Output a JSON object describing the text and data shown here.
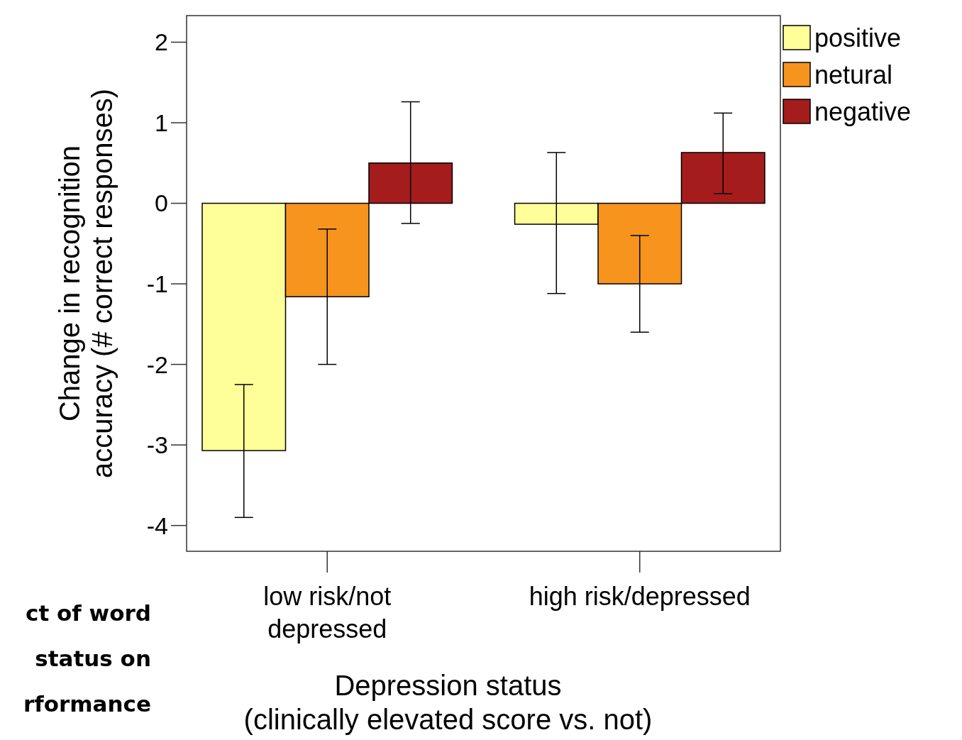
{
  "chart_data": {
    "type": "bar",
    "xlabel": "Depression status\n(clinically elevated score vs. not)",
    "ylabel": "Change in recognition\naccuracy (# correct responses)",
    "categories": [
      "low risk/not\ndepressed",
      "high risk/depressed"
    ],
    "series": [
      {
        "name": "positive",
        "color": "#ffff99",
        "values": [
          -3.07,
          -0.26
        ],
        "errors": [
          [
            -3.9,
            -2.25
          ],
          [
            -1.12,
            0.63
          ]
        ]
      },
      {
        "name": "netural",
        "color": "#f7941d",
        "values": [
          -1.16,
          -1.0
        ],
        "errors": [
          [
            -2.0,
            -0.32
          ],
          [
            -1.6,
            -0.4
          ]
        ]
      },
      {
        "name": "negative",
        "color": "#a51c1c",
        "values": [
          0.5,
          0.63
        ],
        "errors": [
          [
            -0.25,
            1.26
          ],
          [
            0.12,
            1.12
          ]
        ]
      }
    ],
    "ylim": [
      -4.32,
      2.33
    ],
    "yticks": [
      -4,
      -3,
      -2,
      -1,
      0,
      1,
      2
    ],
    "grid": false,
    "legend": "top right",
    "annotations": [
      "ct of word",
      "status on",
      "rformance"
    ]
  }
}
